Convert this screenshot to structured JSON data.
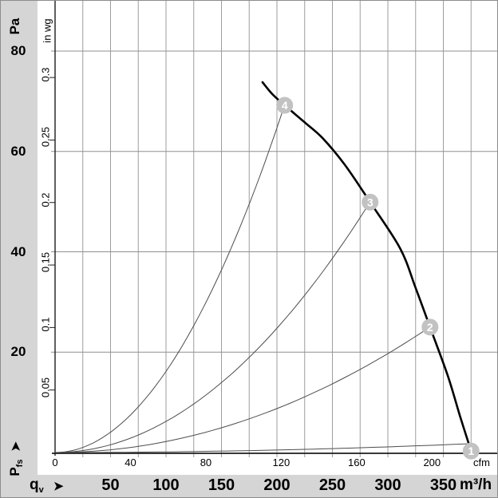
{
  "colors": {
    "background_gray": "#d5d5d5",
    "plot_background": "#ffffff",
    "grid_vertical": "#9e9e9e",
    "grid_horizontal": "#8f8f8f",
    "axis": "#1c1c1c",
    "fan_curve": "#000000",
    "system_curve": "#4d4d4d",
    "marker_fill": "#c2c2c2",
    "marker_text": "#ffffff"
  },
  "labels": {
    "pa_unit": "Pa",
    "inwg_unit": "in wg",
    "cfm_unit": "cfm",
    "m3h_unit": "m³/h",
    "pressure_symbol_main": "P",
    "pressure_symbol_sub": "fs",
    "flow_symbol_main": "q",
    "flow_symbol_sub": "v",
    "pressure_axis_arrow_icon": "arrow-up-icon",
    "flow_axis_arrow_icon": "arrow-right-icon",
    "arrow_glyph": "➤"
  },
  "chart_data": {
    "type": "line",
    "description": "Fan static pressure vs. volumetric airflow characteristic curve with four system-resistance parabolas marked 1-4",
    "grid": true,
    "y_axis_left": {
      "label": "Pa",
      "ticks": [
        20,
        40,
        60,
        80
      ],
      "range": [
        0,
        90
      ]
    },
    "y_axis_secondary": {
      "label": "in wg",
      "ticks": [
        0.05,
        0.1,
        0.15,
        0.2,
        0.25,
        0.3
      ],
      "pa_per_inwg": 249.1
    },
    "x_axis_cfm": {
      "label": "cfm",
      "ticks": [
        0,
        40,
        80,
        120,
        160,
        200
      ],
      "m3h_per_cfm": 1.699
    },
    "x_axis_m3h": {
      "label": "m³/h",
      "ticks": [
        50,
        100,
        150,
        200,
        250,
        300,
        350
      ],
      "range": [
        0,
        400
      ],
      "gridline_step_m3h": 25
    },
    "axis_titles": {
      "pressure": "Pfs",
      "flow": "qv"
    },
    "series": [
      {
        "name": "fan-curve",
        "x_label": "qv (m³/h)",
        "y_label": "Pfs (Pa)",
        "points": [
          [
            187,
            73.8
          ],
          [
            196,
            71.4
          ],
          [
            207,
            69.2
          ],
          [
            225,
            65.8
          ],
          [
            241,
            62.7
          ],
          [
            261,
            57.4
          ],
          [
            284,
            49.9
          ],
          [
            311,
            40.7
          ],
          [
            325,
            32.8
          ],
          [
            338,
            25.0
          ],
          [
            354,
            15.3
          ],
          [
            365,
            7.3
          ],
          [
            375,
            0.3
          ]
        ]
      }
    ],
    "system_curves": [
      {
        "id": "1",
        "k_pa_per_m3h2": 1.25e-05,
        "q_end_m3h": 375
      },
      {
        "id": "2",
        "k_pa_per_m3h2": 0.000219,
        "q_end_m3h": 338
      },
      {
        "id": "3",
        "k_pa_per_m3h2": 0.000619,
        "q_end_m3h": 284
      },
      {
        "id": "4",
        "k_pa_per_m3h2": 0.001617,
        "q_end_m3h": 207
      }
    ],
    "markers": [
      {
        "label": "1",
        "q_m3h": 375,
        "pa": 0.3
      },
      {
        "label": "2",
        "q_m3h": 338,
        "pa": 25.0
      },
      {
        "label": "3",
        "q_m3h": 284,
        "pa": 49.9
      },
      {
        "label": "4",
        "q_m3h": 207,
        "pa": 69.2
      }
    ]
  }
}
